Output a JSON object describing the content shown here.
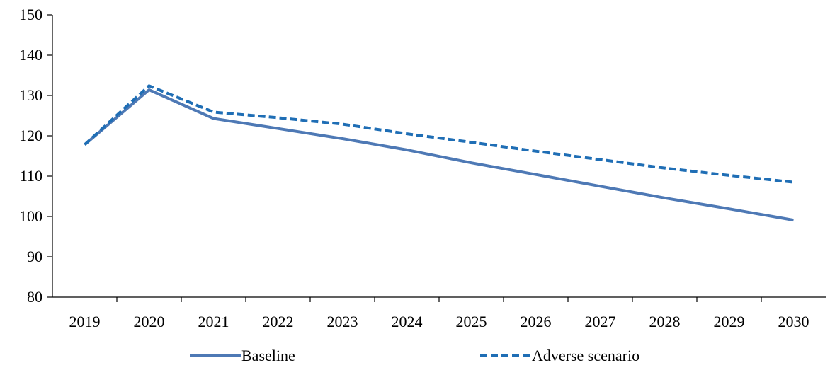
{
  "chart_data": {
    "type": "line",
    "x": [
      "2019",
      "2020",
      "2021",
      "2022",
      "2023",
      "2024",
      "2025",
      "2026",
      "2027",
      "2028",
      "2029",
      "2030"
    ],
    "ylim": [
      80,
      150
    ],
    "yticks": [
      80,
      90,
      100,
      110,
      120,
      130,
      140,
      150
    ],
    "grid": false,
    "legend_position": "bottom",
    "series": [
      {
        "name": "Baseline",
        "style": "solid",
        "color": "#4E79B5",
        "values": [
          117.8,
          131.4,
          124.3,
          121.8,
          119.3,
          116.5,
          113.3,
          110.4,
          107.5,
          104.6,
          101.9,
          99.1
        ]
      },
      {
        "name": "Adverse scenario",
        "style": "dashed",
        "color": "#1F6EB5",
        "values": [
          117.8,
          132.4,
          125.9,
          124.5,
          122.9,
          120.5,
          118.4,
          116.2,
          114.1,
          112.0,
          110.2,
          108.5
        ]
      }
    ]
  }
}
